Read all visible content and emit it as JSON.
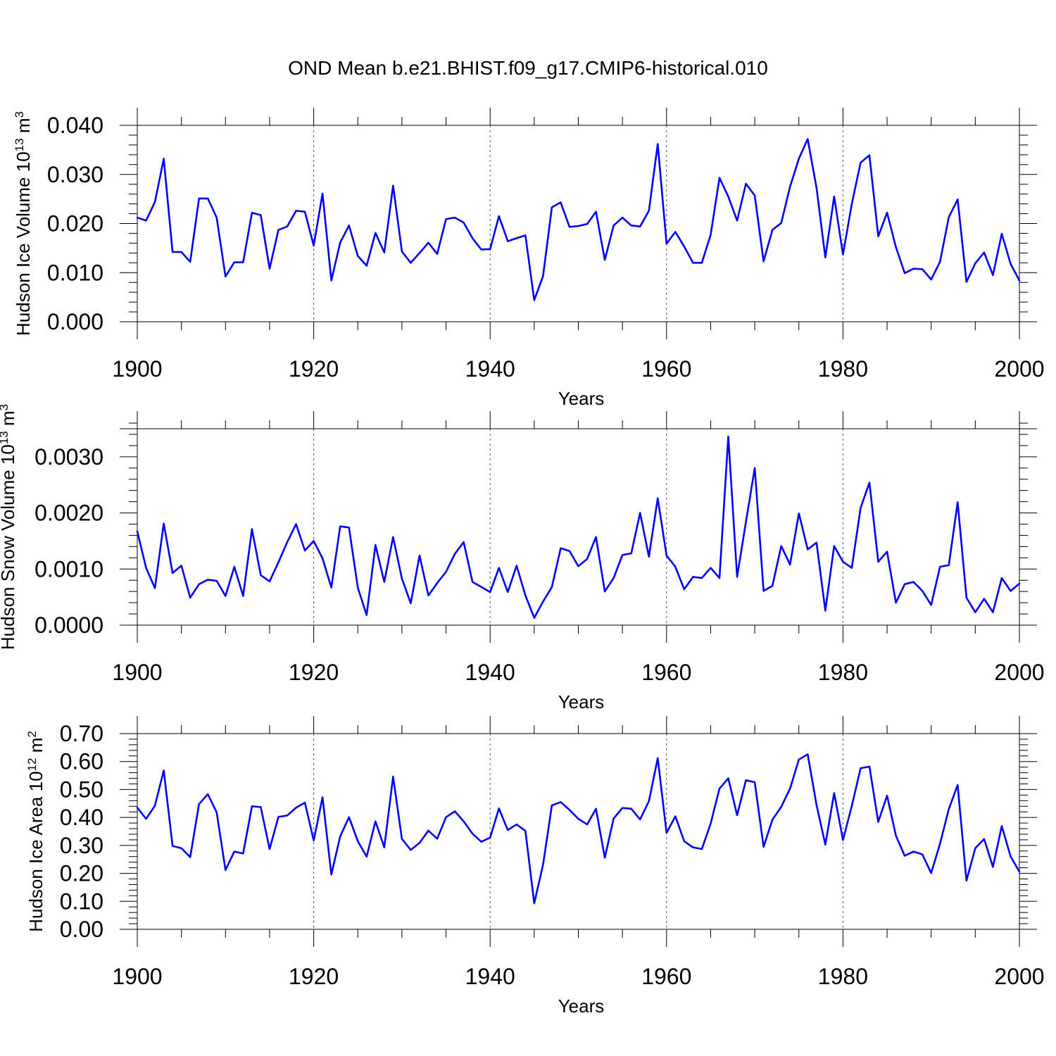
{
  "title": "OND Mean b.e21.BHIST.f09_g17.CMIP6-historical.010",
  "chart_data": [
    {
      "type": "line",
      "title": "OND Mean b.e21.BHIST.f09_g17.CMIP6-historical.010",
      "xlabel": "Years",
      "ylabel": {
        "prefix": "Hudson Ice Volume 10",
        "exp": "13",
        "unit": " m",
        "unit_exp": "3"
      },
      "xlim": [
        1900,
        2000
      ],
      "ylim": [
        0.0,
        0.04
      ],
      "x_ticks": [
        1900,
        1920,
        1940,
        1960,
        1980,
        2000
      ],
      "x_tick_labels": [
        "1900",
        "1920",
        "1940",
        "1960",
        "1980",
        "2000"
      ],
      "y_ticks": [
        0.0,
        0.01,
        0.02,
        0.03,
        0.04
      ],
      "y_tick_labels": [
        "0.000",
        "0.010",
        "0.020",
        "0.030",
        "0.040"
      ],
      "y_minor_step": 0.002,
      "x_start": 1900,
      "line_color": "#0000ff",
      "values": [
        0.0212,
        0.0206,
        0.0244,
        0.0332,
        0.0142,
        0.0142,
        0.0122,
        0.0251,
        0.0251,
        0.0212,
        0.0092,
        0.0121,
        0.0121,
        0.0222,
        0.0217,
        0.0108,
        0.0187,
        0.0194,
        0.0226,
        0.0224,
        0.0155,
        0.0261,
        0.0084,
        0.0161,
        0.0196,
        0.0134,
        0.0114,
        0.0181,
        0.0141,
        0.0277,
        0.0143,
        0.012,
        0.014,
        0.0161,
        0.0138,
        0.0209,
        0.0212,
        0.0202,
        0.017,
        0.0147,
        0.0148,
        0.0215,
        0.0164,
        0.017,
        0.0176,
        0.0044,
        0.0093,
        0.0233,
        0.0243,
        0.0193,
        0.0195,
        0.0199,
        0.0224,
        0.0126,
        0.0196,
        0.0212,
        0.0196,
        0.0194,
        0.0226,
        0.0362,
        0.0159,
        0.0183,
        0.0153,
        0.012,
        0.012,
        0.0177,
        0.0293,
        0.0255,
        0.0206,
        0.0281,
        0.0257,
        0.0123,
        0.0187,
        0.0201,
        0.0275,
        0.0332,
        0.0372,
        0.0273,
        0.0131,
        0.0255,
        0.0137,
        0.024,
        0.0324,
        0.0339,
        0.0174,
        0.0222,
        0.0152,
        0.0099,
        0.0108,
        0.0107,
        0.0086,
        0.0122,
        0.0213,
        0.0249,
        0.0081,
        0.0119,
        0.0141,
        0.0095,
        0.0179,
        0.0118,
        0.0084
      ]
    },
    {
      "type": "line",
      "xlabel": "Years",
      "ylabel": {
        "prefix": "Hudson Snow Volume 10",
        "exp": "13",
        "unit": " m",
        "unit_exp": "3"
      },
      "xlim": [
        1900,
        2000
      ],
      "ylim": [
        0.0,
        0.0035
      ],
      "x_ticks": [
        1900,
        1920,
        1940,
        1960,
        1980,
        2000
      ],
      "x_tick_labels": [
        "1900",
        "1920",
        "1940",
        "1960",
        "1980",
        "2000"
      ],
      "y_ticks": [
        0.0,
        0.001,
        0.002,
        0.003
      ],
      "y_tick_labels": [
        "0.0000",
        "0.0010",
        "0.0020",
        "0.0030"
      ],
      "y_minor_step": 0.0002,
      "x_start": 1900,
      "line_color": "#0000ff",
      "values": [
        0.00167,
        0.00102,
        0.00066,
        0.00181,
        0.00093,
        0.00106,
        0.00049,
        0.00073,
        0.00081,
        0.00079,
        0.00052,
        0.00104,
        0.00052,
        0.00171,
        0.00089,
        0.00078,
        0.00112,
        0.00148,
        0.0018,
        0.00133,
        0.0015,
        0.00119,
        0.00067,
        0.00176,
        0.00174,
        0.00067,
        0.00018,
        0.00143,
        0.00077,
        0.00157,
        0.00083,
        0.00039,
        0.00124,
        0.00053,
        0.00075,
        0.00095,
        0.00127,
        0.00148,
        0.00077,
        0.00068,
        0.00059,
        0.00102,
        0.00059,
        0.00106,
        0.00053,
        0.00013,
        0.00042,
        0.00068,
        0.00137,
        0.00132,
        0.00105,
        0.00118,
        0.00157,
        0.0006,
        0.00084,
        0.00125,
        0.00128,
        0.002,
        0.00122,
        0.00226,
        0.00124,
        0.00104,
        0.00064,
        0.00086,
        0.00084,
        0.00102,
        0.00084,
        0.00336,
        0.00086,
        0.00184,
        0.0028,
        0.00061,
        0.0007,
        0.00141,
        0.00108,
        0.00199,
        0.00135,
        0.00147,
        0.00026,
        0.00141,
        0.00113,
        0.00102,
        0.00209,
        0.00254,
        0.00113,
        0.00131,
        0.0004,
        0.00073,
        0.00077,
        0.00061,
        0.00036,
        0.00104,
        0.00107,
        0.00219,
        0.00049,
        0.00023,
        0.00047,
        0.00023,
        0.00084,
        0.00061,
        0.00074
      ]
    },
    {
      "type": "line",
      "xlabel": "Years",
      "ylabel": {
        "prefix": "Hudson Ice Area 10",
        "exp": "12",
        "unit": " m",
        "unit_exp": "2"
      },
      "xlim": [
        1900,
        2000
      ],
      "ylim": [
        0.0,
        0.7
      ],
      "x_ticks": [
        1900,
        1920,
        1940,
        1960,
        1980,
        2000
      ],
      "x_tick_labels": [
        "1900",
        "1920",
        "1940",
        "1960",
        "1980",
        "2000"
      ],
      "y_ticks": [
        0.0,
        0.1,
        0.2,
        0.3,
        0.4,
        0.5,
        0.6,
        0.7
      ],
      "y_tick_labels": [
        "0.00",
        "0.10",
        "0.20",
        "0.30",
        "0.40",
        "0.50",
        "0.60",
        "0.70"
      ],
      "y_minor_step": 0.02,
      "x_start": 1900,
      "line_color": "#0000ff",
      "values": [
        0.435,
        0.395,
        0.442,
        0.568,
        0.298,
        0.29,
        0.258,
        0.448,
        0.483,
        0.418,
        0.212,
        0.278,
        0.271,
        0.44,
        0.437,
        0.287,
        0.402,
        0.407,
        0.435,
        0.453,
        0.318,
        0.472,
        0.196,
        0.332,
        0.401,
        0.315,
        0.26,
        0.386,
        0.293,
        0.546,
        0.323,
        0.284,
        0.309,
        0.353,
        0.324,
        0.401,
        0.422,
        0.386,
        0.342,
        0.313,
        0.328,
        0.432,
        0.355,
        0.375,
        0.352,
        0.093,
        0.231,
        0.443,
        0.455,
        0.427,
        0.395,
        0.375,
        0.431,
        0.256,
        0.396,
        0.434,
        0.431,
        0.393,
        0.458,
        0.612,
        0.345,
        0.404,
        0.315,
        0.293,
        0.287,
        0.378,
        0.503,
        0.54,
        0.408,
        0.533,
        0.526,
        0.295,
        0.392,
        0.438,
        0.503,
        0.607,
        0.626,
        0.445,
        0.303,
        0.487,
        0.319,
        0.441,
        0.576,
        0.582,
        0.384,
        0.478,
        0.335,
        0.263,
        0.278,
        0.268,
        0.201,
        0.306,
        0.43,
        0.516,
        0.174,
        0.29,
        0.323,
        0.223,
        0.369,
        0.261,
        0.206
      ]
    }
  ]
}
